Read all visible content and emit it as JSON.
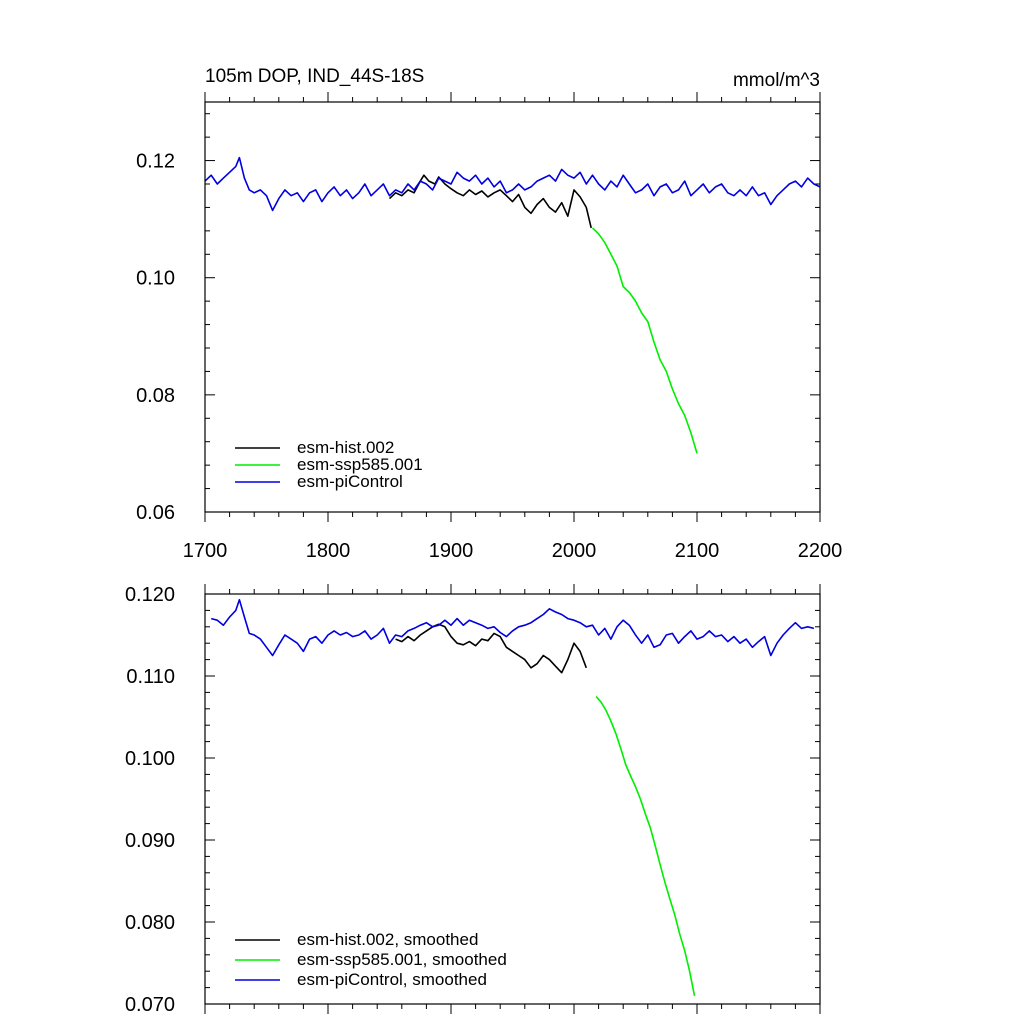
{
  "colors": {
    "hist": "#000000",
    "ssp585": "#00ee00",
    "piControl": "#0000e0",
    "axes": "#000000",
    "background": "#ffffff"
  },
  "chart_data": [
    {
      "type": "line",
      "title": "105m DOP, IND_44S-18S",
      "units": "mmol/m^3",
      "xlim": [
        1700,
        2200
      ],
      "ylim": [
        0.06,
        0.13
      ],
      "xticks": [
        1700,
        1800,
        1900,
        2000,
        2100,
        2200
      ],
      "xtick_labels": [
        "1700",
        "1800",
        "1900",
        "2000",
        "2100",
        "2200"
      ],
      "yticks": [
        0.06,
        0.08,
        0.1,
        0.12
      ],
      "ytick_labels": [
        "0.06",
        "0.08",
        "0.10",
        "0.12"
      ],
      "legend_position": "bottom-left",
      "grid": false,
      "series": [
        {
          "key": "hist",
          "name": "esm-hist.002",
          "x": [
            1850,
            1855,
            1860,
            1865,
            1870,
            1875,
            1878,
            1882,
            1887,
            1890,
            1895,
            1900,
            1905,
            1910,
            1915,
            1920,
            1925,
            1930,
            1935,
            1940,
            1945,
            1950,
            1955,
            1960,
            1965,
            1970,
            1975,
            1980,
            1985,
            1990,
            1995,
            2000,
            2005,
            2010,
            2014
          ],
          "values": [
            0.1135,
            0.1145,
            0.114,
            0.115,
            0.1145,
            0.1165,
            0.1175,
            0.1165,
            0.116,
            0.1172,
            0.116,
            0.1152,
            0.1145,
            0.114,
            0.115,
            0.1142,
            0.1148,
            0.1138,
            0.1145,
            0.115,
            0.114,
            0.113,
            0.1142,
            0.112,
            0.111,
            0.1125,
            0.1135,
            0.112,
            0.1112,
            0.1128,
            0.1105,
            0.115,
            0.1138,
            0.112,
            0.1085
          ]
        },
        {
          "key": "ssp585",
          "name": "esm-ssp585.001",
          "x": [
            2015,
            2020,
            2025,
            2030,
            2035,
            2040,
            2045,
            2050,
            2055,
            2060,
            2065,
            2070,
            2075,
            2080,
            2085,
            2090,
            2095,
            2100
          ],
          "values": [
            0.1085,
            0.1075,
            0.106,
            0.104,
            0.102,
            0.0985,
            0.0975,
            0.096,
            0.094,
            0.0925,
            0.089,
            0.086,
            0.084,
            0.081,
            0.0785,
            0.0765,
            0.0735,
            0.07
          ]
        },
        {
          "key": "piControl",
          "name": "esm-piControl",
          "x": [
            1700,
            1705,
            1710,
            1715,
            1720,
            1725,
            1728,
            1732,
            1736,
            1740,
            1745,
            1750,
            1755,
            1760,
            1765,
            1770,
            1775,
            1780,
            1785,
            1790,
            1795,
            1800,
            1805,
            1810,
            1815,
            1820,
            1825,
            1830,
            1835,
            1840,
            1845,
            1850,
            1855,
            1860,
            1865,
            1870,
            1875,
            1880,
            1885,
            1890,
            1895,
            1900,
            1905,
            1910,
            1915,
            1920,
            1925,
            1930,
            1935,
            1940,
            1945,
            1950,
            1955,
            1960,
            1965,
            1970,
            1975,
            1980,
            1985,
            1990,
            1995,
            2000,
            2005,
            2010,
            2015,
            2020,
            2025,
            2030,
            2035,
            2040,
            2045,
            2050,
            2055,
            2060,
            2065,
            2070,
            2075,
            2080,
            2085,
            2090,
            2095,
            2100,
            2105,
            2110,
            2115,
            2120,
            2125,
            2130,
            2135,
            2140,
            2145,
            2150,
            2155,
            2160,
            2165,
            2170,
            2175,
            2180,
            2185,
            2190,
            2195,
            2200
          ],
          "values": [
            0.1165,
            0.1175,
            0.116,
            0.117,
            0.118,
            0.119,
            0.1205,
            0.117,
            0.115,
            0.1145,
            0.115,
            0.114,
            0.1115,
            0.1135,
            0.115,
            0.114,
            0.1145,
            0.113,
            0.1145,
            0.115,
            0.113,
            0.1145,
            0.1155,
            0.114,
            0.115,
            0.1135,
            0.1145,
            0.116,
            0.114,
            0.115,
            0.116,
            0.114,
            0.115,
            0.1145,
            0.116,
            0.115,
            0.1165,
            0.116,
            0.115,
            0.117,
            0.1165,
            0.116,
            0.118,
            0.117,
            0.1165,
            0.1175,
            0.116,
            0.117,
            0.1155,
            0.1165,
            0.1145,
            0.115,
            0.116,
            0.115,
            0.1155,
            0.1165,
            0.117,
            0.1175,
            0.1165,
            0.1185,
            0.1175,
            0.117,
            0.118,
            0.116,
            0.1175,
            0.116,
            0.115,
            0.1165,
            0.1155,
            0.1175,
            0.116,
            0.1145,
            0.115,
            0.116,
            0.114,
            0.1155,
            0.116,
            0.1145,
            0.115,
            0.1165,
            0.114,
            0.115,
            0.116,
            0.1145,
            0.1155,
            0.116,
            0.1145,
            0.114,
            0.115,
            0.114,
            0.1155,
            0.114,
            0.1145,
            0.1125,
            0.114,
            0.115,
            0.116,
            0.1165,
            0.1155,
            0.117,
            0.116,
            0.1155
          ]
        }
      ]
    },
    {
      "type": "line",
      "xlim": [
        1700,
        2200
      ],
      "ylim": [
        0.07,
        0.12
      ],
      "yticks": [
        0.07,
        0.08,
        0.09,
        0.1,
        0.11,
        0.12
      ],
      "ytick_labels": [
        "0.070",
        "0.080",
        "0.090",
        "0.100",
        "0.110",
        "0.120"
      ],
      "legend_position": "bottom-left",
      "grid": false,
      "series": [
        {
          "key": "hist",
          "name": "esm-hist.002, smoothed",
          "x": [
            1855,
            1860,
            1865,
            1870,
            1875,
            1880,
            1885,
            1890,
            1895,
            1900,
            1905,
            1910,
            1915,
            1920,
            1925,
            1930,
            1935,
            1940,
            1945,
            1950,
            1955,
            1960,
            1965,
            1970,
            1975,
            1980,
            1985,
            1990,
            1995,
            2000,
            2005,
            2010
          ],
          "values": [
            0.1145,
            0.1142,
            0.1148,
            0.1143,
            0.115,
            0.1155,
            0.116,
            0.1163,
            0.116,
            0.1148,
            0.114,
            0.1138,
            0.1142,
            0.1137,
            0.1145,
            0.1143,
            0.1152,
            0.1148,
            0.1135,
            0.113,
            0.1125,
            0.112,
            0.111,
            0.1115,
            0.1125,
            0.112,
            0.1112,
            0.1104,
            0.112,
            0.114,
            0.113,
            0.111
          ]
        },
        {
          "key": "ssp585",
          "name": "esm-ssp585.001, smoothed",
          "x": [
            2018,
            2022,
            2026,
            2030,
            2034,
            2038,
            2042,
            2046,
            2050,
            2054,
            2058,
            2062,
            2066,
            2070,
            2074,
            2078,
            2082,
            2086,
            2090,
            2094,
            2098
          ],
          "values": [
            0.1075,
            0.1068,
            0.1058,
            0.1045,
            0.103,
            0.1012,
            0.0992,
            0.0978,
            0.0965,
            0.095,
            0.0932,
            0.0915,
            0.0893,
            0.087,
            0.0848,
            0.0828,
            0.0808,
            0.0785,
            0.0765,
            0.074,
            0.071
          ]
        },
        {
          "key": "piControl",
          "name": "esm-piControl, smoothed",
          "x": [
            1705,
            1710,
            1715,
            1720,
            1725,
            1728,
            1732,
            1736,
            1740,
            1745,
            1750,
            1755,
            1760,
            1765,
            1770,
            1775,
            1780,
            1785,
            1790,
            1795,
            1800,
            1805,
            1810,
            1815,
            1820,
            1825,
            1830,
            1835,
            1840,
            1845,
            1850,
            1855,
            1860,
            1865,
            1870,
            1875,
            1880,
            1885,
            1890,
            1895,
            1900,
            1905,
            1910,
            1915,
            1920,
            1925,
            1930,
            1935,
            1940,
            1945,
            1950,
            1955,
            1960,
            1965,
            1970,
            1975,
            1980,
            1985,
            1990,
            1995,
            2000,
            2005,
            2010,
            2015,
            2020,
            2025,
            2030,
            2035,
            2040,
            2045,
            2050,
            2055,
            2060,
            2065,
            2070,
            2075,
            2080,
            2085,
            2090,
            2095,
            2100,
            2105,
            2110,
            2115,
            2120,
            2125,
            2130,
            2135,
            2140,
            2145,
            2150,
            2155,
            2160,
            2165,
            2170,
            2175,
            2180,
            2185,
            2190,
            2195
          ],
          "values": [
            0.117,
            0.1168,
            0.1162,
            0.1172,
            0.118,
            0.1193,
            0.1172,
            0.1152,
            0.115,
            0.1145,
            0.1135,
            0.1125,
            0.1138,
            0.115,
            0.1145,
            0.114,
            0.113,
            0.1145,
            0.1148,
            0.114,
            0.115,
            0.1155,
            0.115,
            0.1153,
            0.1148,
            0.115,
            0.1155,
            0.1145,
            0.115,
            0.1158,
            0.114,
            0.115,
            0.1148,
            0.1155,
            0.1158,
            0.1162,
            0.1165,
            0.116,
            0.1162,
            0.1168,
            0.1162,
            0.117,
            0.1162,
            0.1168,
            0.1165,
            0.1162,
            0.1158,
            0.116,
            0.1153,
            0.1148,
            0.1155,
            0.116,
            0.1162,
            0.1165,
            0.117,
            0.1175,
            0.1182,
            0.1178,
            0.1175,
            0.117,
            0.1168,
            0.1165,
            0.116,
            0.1162,
            0.115,
            0.1158,
            0.1145,
            0.116,
            0.1168,
            0.1162,
            0.115,
            0.114,
            0.115,
            0.1135,
            0.1138,
            0.115,
            0.1152,
            0.114,
            0.1148,
            0.1155,
            0.1145,
            0.1148,
            0.1155,
            0.1148,
            0.115,
            0.1142,
            0.1148,
            0.114,
            0.1145,
            0.1135,
            0.1142,
            0.1148,
            0.1125,
            0.114,
            0.115,
            0.1158,
            0.1165,
            0.1158,
            0.116,
            0.1158
          ]
        }
      ]
    }
  ]
}
